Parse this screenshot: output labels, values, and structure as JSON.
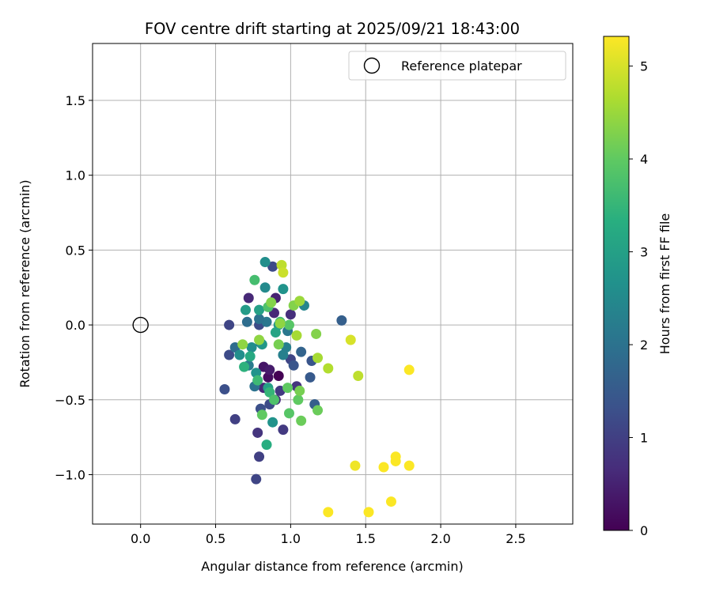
{
  "chart_data": {
    "type": "scatter",
    "title": "FOV centre drift starting at 2025/09/21 18:43:00",
    "xlabel": "Angular distance from reference (arcmin)",
    "ylabel": "Rotation from reference (arcmin)",
    "xlim": [
      -0.32,
      2.88
    ],
    "ylim": [
      -1.33,
      1.88
    ],
    "xticks": [
      0.0,
      0.5,
      1.0,
      1.5,
      2.0,
      2.5
    ],
    "xtick_labels": [
      "0.0",
      "0.5",
      "1.0",
      "1.5",
      "2.0",
      "2.5"
    ],
    "yticks": [
      -1.0,
      -0.5,
      0.0,
      0.5,
      1.0,
      1.5
    ],
    "ytick_labels": [
      "−1.0",
      "−0.5",
      "0.0",
      "0.5",
      "1.0",
      "1.5"
    ],
    "grid": true,
    "legend": {
      "position": "top-right",
      "entries": [
        "Reference platepar"
      ]
    },
    "reference_point": {
      "x": 0.0,
      "y": 0.0,
      "label": "Reference platepar"
    },
    "colorbar": {
      "label": "Hours from first FF file",
      "colormap": "viridis",
      "range": [
        0,
        5.32
      ],
      "ticks": [
        0,
        1,
        2,
        3,
        4,
        5
      ],
      "tick_labels": [
        "0",
        "1",
        "2",
        "3",
        "4",
        "5"
      ]
    },
    "points": [
      {
        "x": 0.92,
        "y": -0.34,
        "h": 0.0
      },
      {
        "x": 0.85,
        "y": -0.35,
        "h": 0.2
      },
      {
        "x": 0.82,
        "y": -0.28,
        "h": 0.3
      },
      {
        "x": 0.86,
        "y": -0.3,
        "h": 0.4
      },
      {
        "x": 0.72,
        "y": 0.18,
        "h": 0.6
      },
      {
        "x": 0.9,
        "y": 0.18,
        "h": 0.5
      },
      {
        "x": 0.89,
        "y": 0.08,
        "h": 0.6
      },
      {
        "x": 1.0,
        "y": 0.07,
        "h": 0.7
      },
      {
        "x": 0.82,
        "y": -0.42,
        "h": 0.6
      },
      {
        "x": 0.9,
        "y": -0.5,
        "h": 0.7
      },
      {
        "x": 0.93,
        "y": -0.44,
        "h": 0.9
      },
      {
        "x": 1.04,
        "y": -0.41,
        "h": 0.8
      },
      {
        "x": 0.78,
        "y": -0.72,
        "h": 0.8
      },
      {
        "x": 0.95,
        "y": -0.7,
        "h": 0.9
      },
      {
        "x": 0.79,
        "y": -0.88,
        "h": 1.0
      },
      {
        "x": 0.77,
        "y": -1.03,
        "h": 1.1
      },
      {
        "x": 0.63,
        "y": -0.63,
        "h": 1.0
      },
      {
        "x": 0.59,
        "y": 0.0,
        "h": 1.1
      },
      {
        "x": 0.59,
        "y": -0.2,
        "h": 1.2
      },
      {
        "x": 0.56,
        "y": -0.43,
        "h": 1.3
      },
      {
        "x": 0.88,
        "y": 0.39,
        "h": 1.2
      },
      {
        "x": 0.79,
        "y": 0.0,
        "h": 1.2
      },
      {
        "x": 0.8,
        "y": -0.56,
        "h": 1.3
      },
      {
        "x": 0.86,
        "y": -0.53,
        "h": 1.2
      },
      {
        "x": 1.0,
        "y": -0.23,
        "h": 1.1
      },
      {
        "x": 1.02,
        "y": -0.27,
        "h": 1.4
      },
      {
        "x": 1.13,
        "y": -0.35,
        "h": 1.5
      },
      {
        "x": 1.14,
        "y": -0.24,
        "h": 1.4
      },
      {
        "x": 1.16,
        "y": -0.53,
        "h": 1.6
      },
      {
        "x": 1.07,
        "y": -0.18,
        "h": 1.7
      },
      {
        "x": 1.34,
        "y": 0.03,
        "h": 1.6
      },
      {
        "x": 0.63,
        "y": -0.15,
        "h": 1.9
      },
      {
        "x": 0.76,
        "y": -0.41,
        "h": 2.0
      },
      {
        "x": 0.71,
        "y": 0.02,
        "h": 1.9
      },
      {
        "x": 0.8,
        "y": -0.12,
        "h": 2.0
      },
      {
        "x": 0.84,
        "y": 0.02,
        "h": 2.1
      },
      {
        "x": 0.72,
        "y": -0.27,
        "h": 2.2
      },
      {
        "x": 0.79,
        "y": 0.04,
        "h": 2.0
      },
      {
        "x": 0.98,
        "y": -0.04,
        "h": 2.1
      },
      {
        "x": 0.97,
        "y": -0.15,
        "h": 2.3
      },
      {
        "x": 0.95,
        "y": -0.2,
        "h": 2.3
      },
      {
        "x": 1.09,
        "y": 0.13,
        "h": 2.4
      },
      {
        "x": 0.83,
        "y": 0.42,
        "h": 2.6
      },
      {
        "x": 0.83,
        "y": 0.25,
        "h": 2.5
      },
      {
        "x": 0.95,
        "y": 0.24,
        "h": 2.7
      },
      {
        "x": 0.66,
        "y": -0.2,
        "h": 2.6
      },
      {
        "x": 0.74,
        "y": -0.15,
        "h": 2.6
      },
      {
        "x": 0.77,
        "y": -0.32,
        "h": 2.7
      },
      {
        "x": 0.88,
        "y": -0.65,
        "h": 2.7
      },
      {
        "x": 0.92,
        "y": 0.0,
        "h": 2.8
      },
      {
        "x": 0.81,
        "y": -0.13,
        "h": 2.8
      },
      {
        "x": 0.7,
        "y": 0.1,
        "h": 2.9
      },
      {
        "x": 0.79,
        "y": 0.1,
        "h": 3.0
      },
      {
        "x": 0.85,
        "y": -0.42,
        "h": 3.0
      },
      {
        "x": 0.9,
        "y": -0.05,
        "h": 3.1
      },
      {
        "x": 0.73,
        "y": -0.21,
        "h": 3.2
      },
      {
        "x": 0.84,
        "y": -0.8,
        "h": 3.3
      },
      {
        "x": 0.69,
        "y": -0.28,
        "h": 3.4
      },
      {
        "x": 0.86,
        "y": -0.45,
        "h": 3.5
      },
      {
        "x": 0.78,
        "y": -0.37,
        "h": 3.6
      },
      {
        "x": 0.76,
        "y": 0.3,
        "h": 3.7
      },
      {
        "x": 0.93,
        "y": 0.02,
        "h": 3.7
      },
      {
        "x": 0.89,
        "y": -0.5,
        "h": 3.8
      },
      {
        "x": 0.85,
        "y": 0.12,
        "h": 3.8
      },
      {
        "x": 0.99,
        "y": -0.59,
        "h": 3.9
      },
      {
        "x": 0.99,
        "y": 0.0,
        "h": 3.9
      },
      {
        "x": 1.05,
        "y": -0.5,
        "h": 4.0
      },
      {
        "x": 0.81,
        "y": -0.6,
        "h": 4.0
      },
      {
        "x": 0.98,
        "y": -0.42,
        "h": 4.0
      },
      {
        "x": 1.07,
        "y": -0.64,
        "h": 4.1
      },
      {
        "x": 1.18,
        "y": -0.57,
        "h": 4.1
      },
      {
        "x": 1.06,
        "y": -0.44,
        "h": 4.2
      },
      {
        "x": 0.92,
        "y": -0.13,
        "h": 4.2
      },
      {
        "x": 0.87,
        "y": 0.15,
        "h": 4.3
      },
      {
        "x": 1.17,
        "y": -0.06,
        "h": 4.3
      },
      {
        "x": 1.02,
        "y": 0.13,
        "h": 4.3
      },
      {
        "x": 0.93,
        "y": 0.01,
        "h": 4.4
      },
      {
        "x": 0.68,
        "y": -0.13,
        "h": 4.4
      },
      {
        "x": 0.79,
        "y": -0.1,
        "h": 4.4
      },
      {
        "x": 1.06,
        "y": 0.16,
        "h": 4.5
      },
      {
        "x": 1.04,
        "y": -0.07,
        "h": 4.6
      },
      {
        "x": 1.18,
        "y": -0.22,
        "h": 4.6
      },
      {
        "x": 1.25,
        "y": -0.29,
        "h": 4.7
      },
      {
        "x": 1.45,
        "y": -0.34,
        "h": 4.8
      },
      {
        "x": 0.94,
        "y": 0.4,
        "h": 4.8
      },
      {
        "x": 0.95,
        "y": 0.35,
        "h": 4.9
      },
      {
        "x": 1.4,
        "y": -0.1,
        "h": 5.0
      },
      {
        "x": 1.79,
        "y": -0.3,
        "h": 5.3
      },
      {
        "x": 1.43,
        "y": -0.94,
        "h": 5.2
      },
      {
        "x": 1.62,
        "y": -0.95,
        "h": 5.3
      },
      {
        "x": 1.7,
        "y": -0.88,
        "h": 5.3
      },
      {
        "x": 1.7,
        "y": -0.91,
        "h": 5.3
      },
      {
        "x": 1.79,
        "y": -0.94,
        "h": 5.3
      },
      {
        "x": 1.67,
        "y": -1.18,
        "h": 5.3
      },
      {
        "x": 1.25,
        "y": -1.25,
        "h": 5.3
      },
      {
        "x": 1.52,
        "y": -1.25,
        "h": 5.3
      }
    ]
  }
}
